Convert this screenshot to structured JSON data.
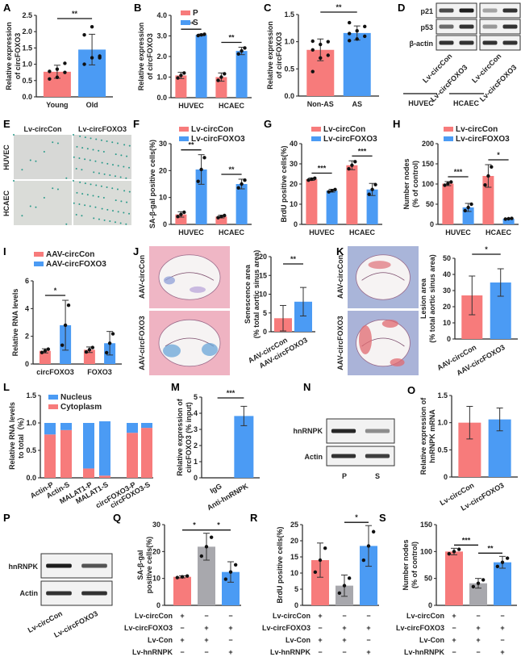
{
  "colors": {
    "red": "#f77b7b",
    "blue": "#4b9bf4",
    "gray": "#a8a8ad",
    "axis": "#222222"
  },
  "chart_data": [
    {
      "id": "A",
      "type": "bar",
      "ylabel": "Relative expression of circFOXO3",
      "categories": [
        "Young",
        "Old"
      ],
      "values": [
        0.77,
        1.45
      ],
      "errors": [
        0.2,
        0.47
      ],
      "ylim": [
        0,
        2.5
      ],
      "yticks": [
        "0.0",
        "0.5",
        "1.0",
        "1.5",
        "2.0",
        "2.5"
      ],
      "points": [
        [
          0.55,
          0.6,
          0.75,
          0.78,
          0.85,
          1.03
        ],
        [
          1.0,
          1.2,
          1.25,
          1.9,
          2.15,
          1.2
        ]
      ],
      "sig": [
        {
          "from": 0,
          "to": 1,
          "label": "**"
        }
      ],
      "colors": [
        "red",
        "blue"
      ]
    },
    {
      "id": "B",
      "type": "bar",
      "ylabel": "Relative expression of circFOXO3",
      "legend": [
        "P",
        "S"
      ],
      "categories": [
        "HUVEC",
        "HCAEC"
      ],
      "series": [
        {
          "name": "P",
          "values": [
            1.08,
            1.0
          ],
          "errors": [
            0.15,
            0.2
          ]
        },
        {
          "name": "S",
          "values": [
            3.05,
            2.27
          ],
          "errors": [
            0.04,
            0.18
          ]
        }
      ],
      "ylim": [
        0,
        4.0
      ],
      "yticks": [
        "0.0",
        "1.0",
        "2.0",
        "3.0",
        "4.0"
      ],
      "sig": [
        "**",
        "**"
      ]
    },
    {
      "id": "C",
      "type": "bar",
      "ylabel": "Relative expression of circFOXO3",
      "categories": [
        "Non-AS",
        "AS"
      ],
      "values": [
        0.85,
        1.16
      ],
      "errors": [
        0.2,
        0.13
      ],
      "ylim": [
        0,
        1.5
      ],
      "yticks": [
        "0.0",
        "0.5",
        "1.0",
        "1.5"
      ],
      "points": [
        [
          0.45,
          0.7,
          0.75,
          0.85,
          0.95,
          1.0,
          1.01
        ],
        [
          1.02,
          1.05,
          1.1,
          1.15,
          1.2,
          1.28,
          1.35
        ]
      ],
      "sig": [
        {
          "from": 0,
          "to": 1,
          "label": "**"
        }
      ],
      "colors": [
        "red",
        "blue"
      ]
    },
    {
      "id": "F",
      "type": "bar",
      "ylabel": "SA-β-gal positive cells(%)",
      "legend": [
        "Lv-circCon",
        "Lv-circFOXO3"
      ],
      "categories": [
        "HUVEC",
        "HCAEC"
      ],
      "series": [
        {
          "name": "Lv-circCon",
          "values": [
            3.7,
            2.9
          ],
          "errors": [
            1.0,
            0.5
          ]
        },
        {
          "name": "Lv-circFOXO3",
          "values": [
            20.4,
            15.0
          ],
          "errors": [
            5.5,
            1.8
          ]
        }
      ],
      "ylim": [
        0,
        30
      ],
      "yticks": [
        "0",
        "10",
        "20",
        "30"
      ],
      "sig": [
        "**",
        "**"
      ]
    },
    {
      "id": "G",
      "type": "bar",
      "ylabel": "BrdU positive cells(%)",
      "legend": [
        "Lv-circCon",
        "Lv-circFOXO3"
      ],
      "categories": [
        "HUVEC",
        "HCAEC"
      ],
      "series": [
        {
          "name": "Lv-circCon",
          "values": [
            22.4,
            29.3
          ],
          "errors": [
            0.6,
            2.2
          ]
        },
        {
          "name": "Lv-circFOXO3",
          "values": [
            16.7,
            17.3
          ],
          "errors": [
            0.7,
            3.0
          ]
        }
      ],
      "ylim": [
        0,
        40
      ],
      "yticks": [
        "0",
        "10",
        "20",
        "30",
        "40"
      ],
      "sig": [
        "***",
        "***"
      ]
    },
    {
      "id": "H",
      "type": "bar",
      "ylabel": "Number nodes (% of control)",
      "legend": [
        "Lv-circCon",
        "Lv-circFOXO3"
      ],
      "categories": [
        "HUVEC",
        "HCAEC"
      ],
      "series": [
        {
          "name": "Lv-circCon",
          "values": [
            101,
            120
          ],
          "errors": [
            5,
            28
          ]
        },
        {
          "name": "Lv-circFOXO3",
          "values": [
            42,
            14
          ],
          "errors": [
            10,
            1
          ]
        }
      ],
      "ylim": [
        0,
        200
      ],
      "yticks": [
        "0",
        "50",
        "100",
        "150",
        "200"
      ],
      "sig": [
        "***",
        "*"
      ]
    },
    {
      "id": "I",
      "type": "bar",
      "ylabel": "Relative RNA levels",
      "legend": [
        "AAV-circCon",
        "AAV-circFOXO3"
      ],
      "categories": [
        "circFOXO3",
        "FOXO3"
      ],
      "series": [
        {
          "name": "AAV-circCon",
          "values": [
            0.95,
            1.03
          ],
          "errors": [
            0.15,
            0.2
          ]
        },
        {
          "name": "AAV-circFOXO3",
          "values": [
            2.8,
            1.5
          ],
          "errors": [
            1.8,
            0.85
          ]
        }
      ],
      "ylim": [
        0,
        6
      ],
      "yticks": [
        "0",
        "2",
        "4",
        "6"
      ],
      "sig": [
        "*",
        ""
      ]
    },
    {
      "id": "J",
      "type": "bar",
      "ylabel": "Senescence area (% total aortic sinus area)",
      "categories": [
        "AAV-circCon",
        "AAV-circFOXO3"
      ],
      "values": [
        3.6,
        8.0
      ],
      "errors": [
        3.4,
        3.8
      ],
      "ylim": [
        0,
        20
      ],
      "yticks": [
        "0",
        "5",
        "10",
        "15",
        "20"
      ],
      "sig": [
        {
          "from": 0,
          "to": 1,
          "label": "**"
        }
      ],
      "colors": [
        "red",
        "blue"
      ]
    },
    {
      "id": "K",
      "type": "bar",
      "ylabel": "Lesion area (% total aortic sinus area)",
      "categories": [
        "AAV-circCon",
        "AAV-circFOXO3"
      ],
      "values": [
        27,
        35
      ],
      "errors": [
        12,
        8.5
      ],
      "ylim": [
        0,
        50
      ],
      "yticks": [
        "0",
        "10",
        "20",
        "30",
        "40",
        "50"
      ],
      "sig": [
        {
          "from": 0,
          "to": 1,
          "label": "*"
        }
      ],
      "colors": [
        "red",
        "blue"
      ]
    },
    {
      "id": "L",
      "type": "stacked-bar",
      "ylabel": "Relative RNA levels to total (%)",
      "legend": [
        "Nucleus",
        "Cytoplasm"
      ],
      "categories": [
        "Actin-P",
        "Actin-S",
        "MALAT1-P",
        "MALAT1-S",
        "circFOXO3-P",
        "circFOXO3-S"
      ],
      "series": [
        {
          "name": "Cytoplasm",
          "values": [
            0.79,
            0.87,
            0.17,
            0.04,
            0.82,
            0.91
          ]
        },
        {
          "name": "Nucleus",
          "values": [
            0.21,
            0.13,
            0.83,
            0.99,
            0.18,
            0.09
          ]
        }
      ],
      "ylim": [
        0,
        1.5
      ],
      "yticks": [
        "0.0",
        "0.5",
        "1.0",
        "1.5"
      ]
    },
    {
      "id": "M",
      "type": "bar",
      "ylabel": "Relative expression of circFOXO3 (% input)",
      "categories": [
        "IgG",
        "Anti-hnRNPK"
      ],
      "values": [
        0.0,
        3.83
      ],
      "errors": [
        0.0,
        0.6
      ],
      "ylim": [
        0,
        5
      ],
      "yticks": [
        "0",
        "1",
        "2",
        "3",
        "4",
        "5"
      ],
      "sig": [
        {
          "from": 0,
          "to": 1,
          "label": "***"
        }
      ],
      "colors": [
        "red",
        "blue"
      ]
    },
    {
      "id": "O",
      "type": "bar",
      "ylabel": "Relative expression of hnRNPK mRNA",
      "categories": [
        "Lv-circCon",
        "Lv-circFOXO3"
      ],
      "values": [
        1.0,
        1.06
      ],
      "errors": [
        0.3,
        0.21
      ],
      "ylim": [
        0,
        1.5
      ],
      "yticks": [
        "0",
        "0.5",
        "1.0",
        "1.5"
      ],
      "colors": [
        "red",
        "blue"
      ]
    },
    {
      "id": "Q",
      "type": "bar",
      "ylabel": "SA-β-gal positive cells(%)",
      "categories": [
        "1",
        "2",
        "3"
      ],
      "values": [
        10.6,
        21.8,
        12.4
      ],
      "errors": [
        0.4,
        5,
        3.8
      ],
      "ylim": [
        0,
        30
      ],
      "yticks": [
        "0",
        "10",
        "20",
        "30"
      ],
      "sig": [
        {
          "from": 0,
          "to": 1,
          "label": "*"
        },
        {
          "from": 1,
          "to": 2,
          "label": "*"
        }
      ],
      "colors": [
        "red",
        "gray",
        "blue"
      ]
    },
    {
      "id": "R",
      "type": "bar",
      "ylabel": "BrdU positive cells(%)",
      "categories": [
        "1",
        "2",
        "3"
      ],
      "values": [
        14,
        6.1,
        18.4
      ],
      "errors": [
        5.3,
        3.3,
        6.3
      ],
      "ylim": [
        0,
        25
      ],
      "yticks": [
        "0",
        "5",
        "10",
        "15",
        "20",
        "25"
      ],
      "sig": [
        {
          "from": 1,
          "to": 2,
          "label": "*"
        }
      ],
      "colors": [
        "red",
        "gray",
        "blue"
      ]
    },
    {
      "id": "S",
      "type": "bar",
      "ylabel": "Number nodes (% of control)",
      "categories": [
        "1",
        "2",
        "3"
      ],
      "values": [
        100,
        41,
        80
      ],
      "errors": [
        6,
        9,
        11
      ],
      "ylim": [
        0,
        150
      ],
      "yticks": [
        "0",
        "50",
        "100",
        "150"
      ],
      "sig": [
        {
          "from": 0,
          "to": 1,
          "label": "***"
        },
        {
          "from": 1,
          "to": 2,
          "label": "**"
        }
      ],
      "colors": [
        "red",
        "gray",
        "blue"
      ]
    }
  ],
  "treatment_table": {
    "rows": [
      "Lv-circCon",
      "Lv-circFOXO3",
      "Lv-Con",
      "Lv-hnRNPK"
    ],
    "signs": [
      [
        "+",
        "−",
        "−"
      ],
      [
        "−",
        "+",
        "+"
      ],
      [
        "+",
        "+",
        "−"
      ],
      [
        "−",
        "−",
        "+"
      ]
    ]
  },
  "panel_letters": [
    "A",
    "B",
    "C",
    "D",
    "E",
    "F",
    "G",
    "H",
    "I",
    "J",
    "K",
    "L",
    "M",
    "N",
    "O",
    "P",
    "Q",
    "R",
    "S"
  ],
  "blots": {
    "D": {
      "rows": [
        "p21",
        "p53",
        "β-actin"
      ],
      "lanes": [
        "Lv-circCon",
        "Lv-circFOXO3"
      ],
      "groups": [
        "HUVEC",
        "HCAEC"
      ]
    },
    "N": {
      "rows": [
        "hnRNPK",
        "Actin"
      ],
      "lanes": [
        "P",
        "S"
      ]
    },
    "P": {
      "rows": [
        "hnRNPK",
        "Actin"
      ],
      "lanes": [
        "Lv-circCon",
        "Lv-circFOXO3"
      ]
    }
  },
  "images": {
    "E": {
      "cols": [
        "Lv-circCon",
        "Lv-circFOXO3"
      ],
      "rows": [
        "HUVEC",
        "HCAEC"
      ]
    },
    "J": {
      "rows": [
        "AAV-circCon",
        "AAV-circFOXO3"
      ]
    },
    "K": {
      "rows": [
        "AAV-circCon",
        "AAV-circFOXO3"
      ]
    }
  }
}
